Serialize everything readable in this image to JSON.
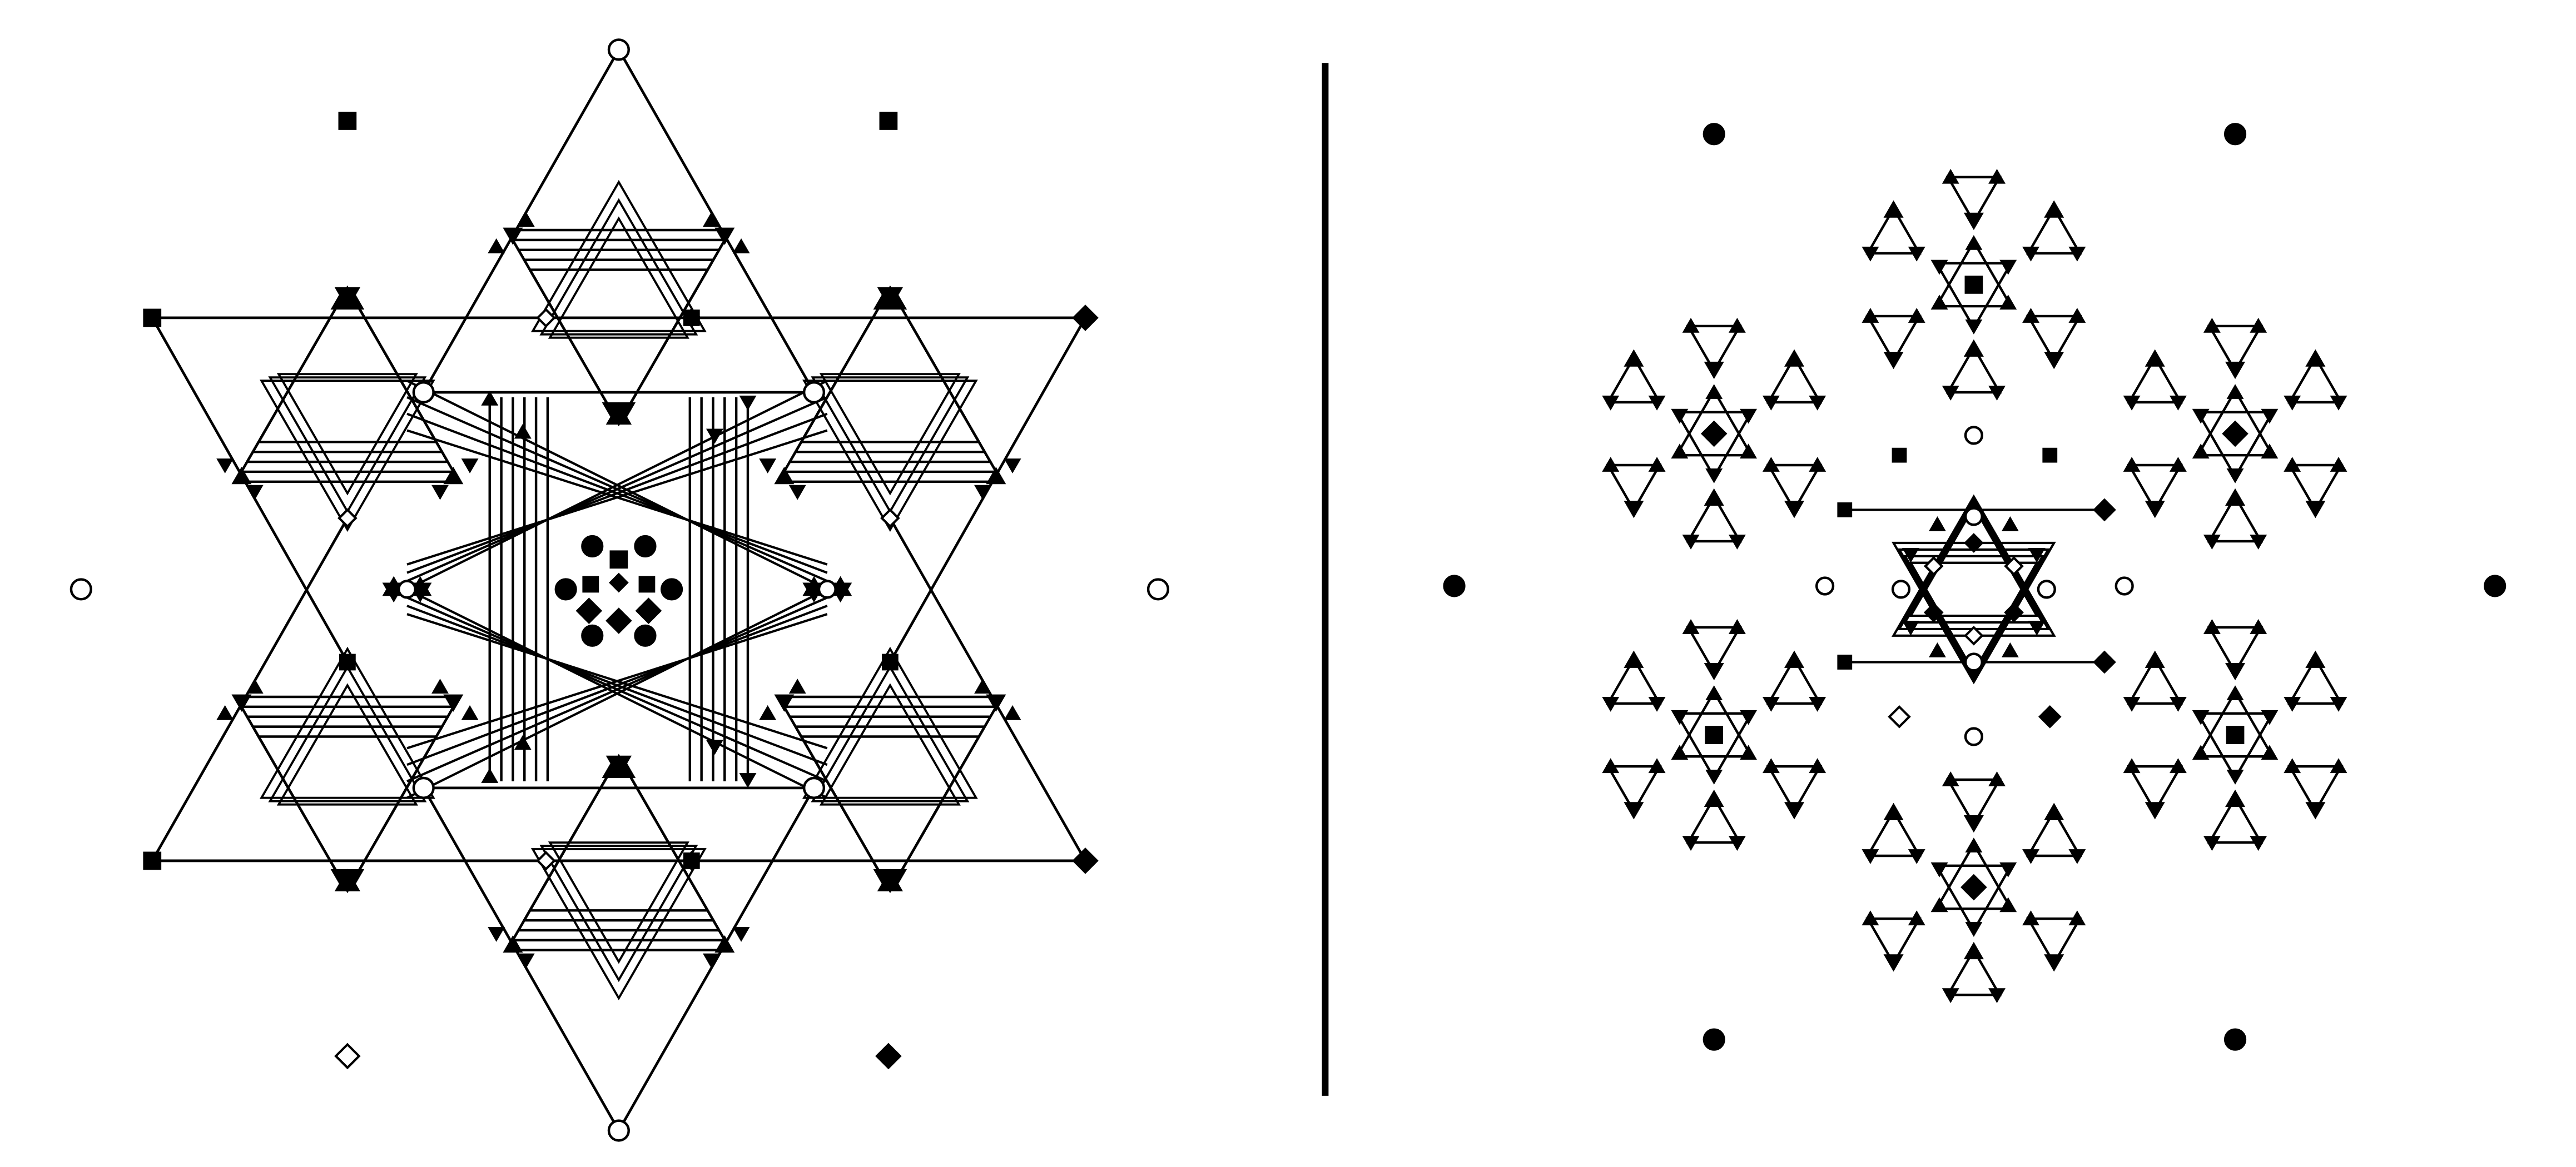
{
  "figure": {
    "panels": [
      {
        "id": "left",
        "description_visible_text": ""
      },
      {
        "id": "right",
        "description_visible_text": ""
      }
    ],
    "colors": {
      "ink": "#000000",
      "paper": "#ffffff"
    }
  }
}
